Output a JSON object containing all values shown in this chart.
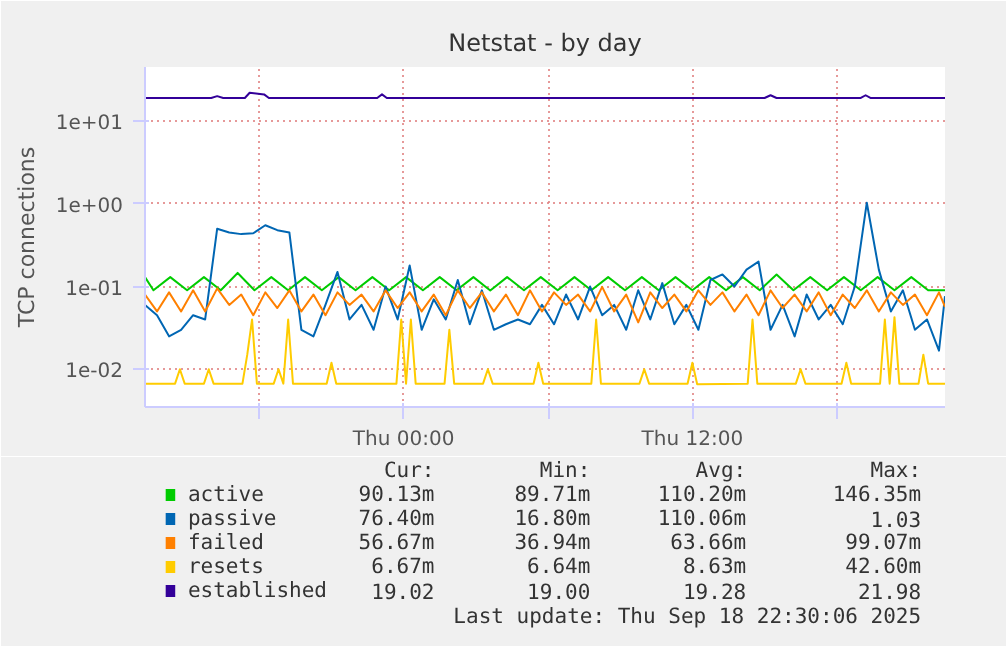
{
  "chart_data": {
    "type": "line",
    "title": "Netstat - by day",
    "ylabel": "TCP connections",
    "log": "y",
    "grid": true,
    "legend": "bottom",
    "xlim": [
      "2025-09-17T13:15",
      "2025-09-18T22:30"
    ],
    "xticks": [
      {
        "value": "2025-09-17T18:00",
        "label": null
      },
      {
        "value": "2025-09-18T00:00",
        "label": "Thu 00:00"
      },
      {
        "value": "2025-09-18T06:00",
        "label": null
      },
      {
        "value": "2025-09-18T12:00",
        "label": "Thu 12:00"
      },
      {
        "value": "2025-09-18T18:00",
        "label": null
      }
    ],
    "ylim": [
      0.0035,
      45
    ],
    "yticks": [
      {
        "value": 0.01,
        "label": "1e-02"
      },
      {
        "value": 0.1,
        "label": "1e-01"
      },
      {
        "value": 1,
        "label": "1e+00"
      },
      {
        "value": 10,
        "label": "1e+01"
      }
    ],
    "x": [
      "2025-09-17T13:15",
      "2025-09-17T13:45",
      "2025-09-17T14:15",
      "2025-09-17T14:45",
      "2025-09-17T15:15",
      "2025-09-17T15:45",
      "2025-09-17T16:15",
      "2025-09-17T16:45",
      "2025-09-17T17:15",
      "2025-09-17T17:45",
      "2025-09-17T18:15",
      "2025-09-17T18:45",
      "2025-09-17T19:15",
      "2025-09-17T19:45",
      "2025-09-17T20:15",
      "2025-09-17T20:45",
      "2025-09-17T21:15",
      "2025-09-17T21:45",
      "2025-09-17T22:15",
      "2025-09-17T22:45",
      "2025-09-17T23:15",
      "2025-09-17T23:45",
      "2025-09-18T00:15",
      "2025-09-18T00:45",
      "2025-09-18T01:15",
      "2025-09-18T01:45",
      "2025-09-18T02:15",
      "2025-09-18T02:45",
      "2025-09-18T03:15",
      "2025-09-18T03:45",
      "2025-09-18T04:15",
      "2025-09-18T04:45",
      "2025-09-18T05:15",
      "2025-09-18T05:45",
      "2025-09-18T06:15",
      "2025-09-18T06:45",
      "2025-09-18T07:15",
      "2025-09-18T07:45",
      "2025-09-18T08:15",
      "2025-09-18T08:45",
      "2025-09-18T09:15",
      "2025-09-18T09:45",
      "2025-09-18T10:15",
      "2025-09-18T10:45",
      "2025-09-18T11:15",
      "2025-09-18T11:45",
      "2025-09-18T12:15",
      "2025-09-18T12:45",
      "2025-09-18T13:15",
      "2025-09-18T13:45",
      "2025-09-18T14:15",
      "2025-09-18T14:45",
      "2025-09-18T15:15",
      "2025-09-18T15:45",
      "2025-09-18T16:15",
      "2025-09-18T16:45",
      "2025-09-18T17:15",
      "2025-09-18T17:45",
      "2025-09-18T18:15",
      "2025-09-18T18:45",
      "2025-09-18T19:15",
      "2025-09-18T19:45",
      "2025-09-18T20:15",
      "2025-09-18T20:45",
      "2025-09-18T21:15",
      "2025-09-18T21:45",
      "2025-09-18T22:15",
      "2025-09-18T22:30"
    ],
    "series": [
      {
        "name": "active",
        "color": "#00cc00",
        "x": [
          "2025-09-17T13:15",
          "2025-09-17T13:36",
          "2025-09-17T14:18",
          "2025-09-17T15:00",
          "2025-09-17T15:42",
          "2025-09-17T16:24",
          "2025-09-17T17:06",
          "2025-09-17T17:48",
          "2025-09-17T18:30",
          "2025-09-17T19:12",
          "2025-09-17T19:54",
          "2025-09-17T20:36",
          "2025-09-17T21:18",
          "2025-09-17T22:00",
          "2025-09-17T22:42",
          "2025-09-17T23:24",
          "2025-09-18T00:06",
          "2025-09-18T00:48",
          "2025-09-18T01:30",
          "2025-09-18T02:12",
          "2025-09-18T02:54",
          "2025-09-18T03:36",
          "2025-09-18T04:18",
          "2025-09-18T05:00",
          "2025-09-18T05:42",
          "2025-09-18T06:24",
          "2025-09-18T07:06",
          "2025-09-18T07:48",
          "2025-09-18T08:30",
          "2025-09-18T09:12",
          "2025-09-18T09:54",
          "2025-09-18T10:36",
          "2025-09-18T11:18",
          "2025-09-18T12:00",
          "2025-09-18T12:42",
          "2025-09-18T13:24",
          "2025-09-18T14:06",
          "2025-09-18T14:48",
          "2025-09-18T15:30",
          "2025-09-18T16:12",
          "2025-09-18T16:54",
          "2025-09-18T17:36",
          "2025-09-18T18:18",
          "2025-09-18T19:00",
          "2025-09-18T19:42",
          "2025-09-18T20:24",
          "2025-09-18T21:06",
          "2025-09-18T21:48",
          "2025-09-18T22:30"
        ],
        "values": [
          0.13,
          0.09,
          0.13,
          0.09,
          0.13,
          0.09,
          0.146,
          0.09,
          0.13,
          0.09,
          0.13,
          0.09,
          0.13,
          0.09,
          0.13,
          0.09,
          0.13,
          0.09,
          0.13,
          0.09,
          0.13,
          0.0897,
          0.13,
          0.09,
          0.13,
          0.09,
          0.13,
          0.09,
          0.13,
          0.09,
          0.13,
          0.09,
          0.13,
          0.09,
          0.13,
          0.09,
          0.13,
          0.09,
          0.14,
          0.09,
          0.13,
          0.09,
          0.13,
          0.09,
          0.13,
          0.09,
          0.13,
          0.09,
          0.0901
        ]
      },
      {
        "name": "passive",
        "color": "#0066b3",
        "values": [
          0.06,
          0.045,
          0.025,
          0.03,
          0.045,
          0.04,
          0.5,
          0.45,
          0.43,
          0.44,
          0.55,
          0.48,
          0.45,
          0.03,
          0.025,
          0.06,
          0.15,
          0.04,
          0.06,
          0.03,
          0.1,
          0.04,
          0.18,
          0.03,
          0.07,
          0.04,
          0.12,
          0.035,
          0.09,
          0.03,
          0.035,
          0.04,
          0.035,
          0.06,
          0.035,
          0.08,
          0.04,
          0.1,
          0.045,
          0.06,
          0.03,
          0.09,
          0.04,
          0.11,
          0.035,
          0.06,
          0.03,
          0.12,
          0.14,
          0.1,
          0.16,
          0.2,
          0.03,
          0.06,
          0.025,
          0.08,
          0.04,
          0.06,
          0.035,
          0.1,
          1.03,
          0.16,
          0.05,
          0.09,
          0.03,
          0.04,
          0.0168,
          0.0764
        ]
      },
      {
        "name": "failed",
        "color": "#ff8000",
        "values": [
          0.08,
          0.05,
          0.085,
          0.05,
          0.09,
          0.05,
          0.095,
          0.06,
          0.08,
          0.045,
          0.085,
          0.055,
          0.09,
          0.05,
          0.08,
          0.045,
          0.085,
          0.06,
          0.08,
          0.05,
          0.09,
          0.055,
          0.085,
          0.05,
          0.08,
          0.045,
          0.09,
          0.055,
          0.085,
          0.05,
          0.08,
          0.045,
          0.09,
          0.05,
          0.085,
          0.06,
          0.08,
          0.05,
          0.099,
          0.05,
          0.08,
          0.0369,
          0.085,
          0.055,
          0.08,
          0.05,
          0.09,
          0.06,
          0.085,
          0.05,
          0.08,
          0.045,
          0.09,
          0.055,
          0.08,
          0.05,
          0.085,
          0.045,
          0.08,
          0.055,
          0.09,
          0.05,
          0.085,
          0.06,
          0.08,
          0.045,
          0.085,
          0.0567
        ]
      },
      {
        "name": "resets",
        "color": "#ffcc00",
        "x": [
          "2025-09-17T13:15",
          "2025-09-17T14:30",
          "2025-09-17T14:42",
          "2025-09-17T14:54",
          "2025-09-17T15:42",
          "2025-09-17T15:54",
          "2025-09-17T16:06",
          "2025-09-17T17:18",
          "2025-09-17T17:30",
          "2025-09-17T17:42",
          "2025-09-17T17:54",
          "2025-09-17T18:36",
          "2025-09-17T18:48",
          "2025-09-17T19:00",
          "2025-09-17T19:12",
          "2025-09-17T19:24",
          "2025-09-17T20:48",
          "2025-09-17T21:00",
          "2025-09-17T21:12",
          "2025-09-17T23:42",
          "2025-09-17T23:54",
          "2025-09-18T00:06",
          "2025-09-18T00:18",
          "2025-09-18T00:30",
          "2025-09-18T01:42",
          "2025-09-18T01:54",
          "2025-09-18T02:06",
          "2025-09-18T03:18",
          "2025-09-18T03:30",
          "2025-09-18T03:42",
          "2025-09-18T05:24",
          "2025-09-18T05:36",
          "2025-09-18T05:48",
          "2025-09-18T07:48",
          "2025-09-18T08:00",
          "2025-09-18T08:12",
          "2025-09-18T09:48",
          "2025-09-18T10:00",
          "2025-09-18T10:12",
          "2025-09-18T11:48",
          "2025-09-18T12:00",
          "2025-09-18T12:12",
          "2025-09-18T14:18",
          "2025-09-18T14:30",
          "2025-09-18T14:42",
          "2025-09-18T16:18",
          "2025-09-18T16:30",
          "2025-09-18T16:42",
          "2025-09-18T18:12",
          "2025-09-18T18:24",
          "2025-09-18T18:36",
          "2025-09-18T19:48",
          "2025-09-18T20:00",
          "2025-09-18T20:12",
          "2025-09-18T20:24",
          "2025-09-18T20:36",
          "2025-09-18T21:24",
          "2025-09-18T21:36",
          "2025-09-18T21:48",
          "2025-09-18T22:30"
        ],
        "values": [
          0.0067,
          0.0067,
          0.01,
          0.0067,
          0.0067,
          0.01,
          0.0067,
          0.0067,
          0.015,
          0.04,
          0.0067,
          0.0067,
          0.01,
          0.0067,
          0.04,
          0.0067,
          0.0067,
          0.012,
          0.0067,
          0.0067,
          0.04,
          0.0067,
          0.04,
          0.0067,
          0.0067,
          0.03,
          0.0067,
          0.0067,
          0.01,
          0.0067,
          0.0067,
          0.012,
          0.0067,
          0.0067,
          0.04,
          0.0067,
          0.0067,
          0.01,
          0.0067,
          0.0067,
          0.012,
          0.0066,
          0.0067,
          0.04,
          0.0067,
          0.0067,
          0.01,
          0.0067,
          0.0067,
          0.012,
          0.0067,
          0.0067,
          0.04,
          0.0067,
          0.0426,
          0.0067,
          0.0067,
          0.015,
          0.0067,
          0.00667
        ]
      },
      {
        "name": "established",
        "color": "#330099",
        "x": [
          "2025-09-17T13:15",
          "2025-09-17T16:00",
          "2025-09-17T16:15",
          "2025-09-17T16:30",
          "2025-09-17T17:24",
          "2025-09-17T17:36",
          "2025-09-17T18:12",
          "2025-09-17T18:24",
          "2025-09-17T22:54",
          "2025-09-17T23:06",
          "2025-09-17T23:18",
          "2025-09-18T15:00",
          "2025-09-18T15:15",
          "2025-09-18T15:30",
          "2025-09-18T19:00",
          "2025-09-18T19:12",
          "2025-09-18T19:24",
          "2025-09-18T22:30"
        ],
        "values": [
          19,
          19,
          20,
          19,
          19,
          21.98,
          21,
          19,
          19,
          21,
          19,
          19,
          20.5,
          19,
          19,
          20.5,
          19,
          19.02
        ]
      }
    ],
    "annotations": [
      "Cur:",
      "Min:",
      "Avg:",
      "Max:",
      "90.13m",
      "89.71m",
      "110.20m",
      "146.35m",
      "76.40m",
      "16.80m",
      "110.06m",
      "1.03",
      "56.67m",
      "36.94m",
      "63.66m",
      "99.07m",
      "6.67m",
      "6.64m",
      "8.63m",
      "42.60m",
      "19.02",
      "19.00",
      "19.28",
      "21.98",
      "Last update: Thu Sep 18 22:30:06 2025"
    ]
  }
}
